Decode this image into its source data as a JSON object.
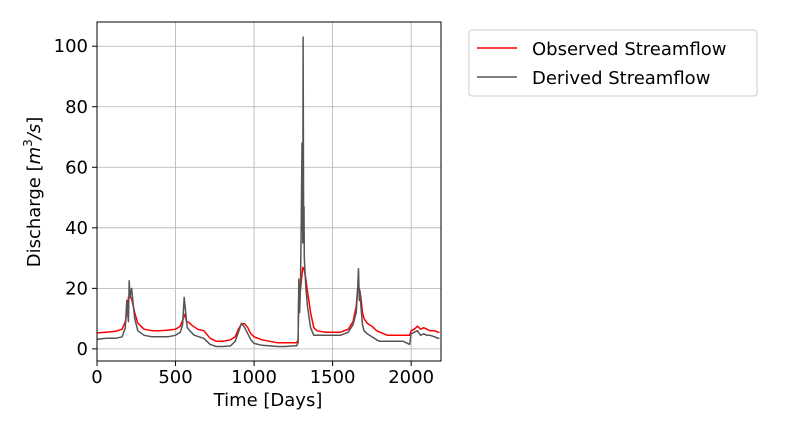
{
  "chart_data": {
    "type": "line",
    "xlabel": "Time [Days]",
    "ylabel_text": "Discharge [",
    "ylabel_unit_base": "m",
    "ylabel_unit_exp": "3",
    "ylabel_unit_tail": "/s",
    "ylabel_close": "]",
    "xlim": [
      0,
      2190
    ],
    "ylim": [
      -4,
      108
    ],
    "xticks": [
      0,
      500,
      1000,
      1500,
      2000
    ],
    "yticks": [
      0,
      20,
      40,
      60,
      80,
      100
    ],
    "grid": true,
    "legend_position": "outside-right-top",
    "series": [
      {
        "name": "Observed Streamflow",
        "color": "#ff0000",
        "x": [
          0,
          60,
          120,
          160,
          180,
          190,
          200,
          210,
          220,
          240,
          260,
          300,
          350,
          400,
          450,
          500,
          530,
          545,
          560,
          570,
          585,
          600,
          640,
          680,
          720,
          760,
          800,
          850,
          880,
          900,
          920,
          940,
          960,
          980,
          1000,
          1050,
          1100,
          1150,
          1200,
          1250,
          1270,
          1280,
          1285,
          1290,
          1300,
          1310,
          1320,
          1330,
          1340,
          1360,
          1380,
          1400,
          1450,
          1500,
          1550,
          1600,
          1630,
          1650,
          1660,
          1670,
          1680,
          1690,
          1700,
          1720,
          1750,
          1780,
          1800,
          1850,
          1900,
          1950,
          1990,
          2000,
          2020,
          2040,
          2060,
          2080,
          2100,
          2120,
          2150,
          2170,
          2180
        ],
        "y": [
          5.3,
          5.5,
          5.8,
          6.5,
          9.0,
          12.0,
          17.0,
          17.5,
          16.5,
          12.0,
          8.5,
          6.5,
          6.0,
          6.0,
          6.2,
          6.5,
          7.5,
          9.5,
          11.5,
          9.0,
          8.8,
          8.0,
          6.5,
          6.0,
          3.5,
          2.5,
          2.5,
          3.0,
          4.0,
          6.5,
          8.3,
          8.3,
          7.0,
          5.0,
          4.0,
          3.0,
          2.5,
          2.0,
          2.0,
          2.0,
          2.0,
          3.0,
          18.0,
          17.0,
          22.0,
          27.0,
          26.0,
          23.0,
          19.0,
          12.0,
          7.0,
          6.0,
          5.5,
          5.5,
          5.5,
          6.5,
          9.0,
          14.0,
          20.0,
          20.0,
          17.0,
          12.0,
          10.0,
          8.5,
          7.5,
          6.0,
          5.5,
          4.5,
          4.5,
          4.5,
          4.5,
          6.0,
          6.5,
          7.5,
          6.5,
          7.0,
          6.5,
          6.0,
          6.0,
          5.5,
          5.5
        ]
      },
      {
        "name": "Derived Streamflow",
        "color": "#555555",
        "x": [
          0,
          60,
          120,
          160,
          180,
          190,
          200,
          205,
          210,
          220,
          240,
          260,
          300,
          350,
          400,
          450,
          500,
          530,
          545,
          555,
          565,
          575,
          590,
          620,
          680,
          720,
          760,
          800,
          850,
          880,
          900,
          920,
          940,
          960,
          980,
          1000,
          1050,
          1100,
          1150,
          1200,
          1250,
          1270,
          1280,
          1285,
          1290,
          1295,
          1300,
          1305,
          1310,
          1312,
          1315,
          1318,
          1320,
          1325,
          1330,
          1340,
          1360,
          1380,
          1400,
          1450,
          1500,
          1550,
          1600,
          1630,
          1650,
          1660,
          1665,
          1670,
          1675,
          1680,
          1690,
          1700,
          1720,
          1750,
          1780,
          1800,
          1850,
          1900,
          1950,
          1990,
          2000,
          2020,
          2040,
          2060,
          2080,
          2100,
          2120,
          2150,
          2170,
          2180
        ],
        "y": [
          3.2,
          3.5,
          3.5,
          4.0,
          7.0,
          16.0,
          9.0,
          22.5,
          17.0,
          20.0,
          10.0,
          6.0,
          4.5,
          4.0,
          4.0,
          4.0,
          4.5,
          5.5,
          8.0,
          17.0,
          12.0,
          7.0,
          6.0,
          4.5,
          3.5,
          1.5,
          0.8,
          0.8,
          1.0,
          2.5,
          5.5,
          8.5,
          7.0,
          5.0,
          3.0,
          1.8,
          1.2,
          1.0,
          0.8,
          0.8,
          1.0,
          1.0,
          2.0,
          23.0,
          12.0,
          20.0,
          40.0,
          68.0,
          35.0,
          103.0,
          45.0,
          47.0,
          30.0,
          25.0,
          20.0,
          14.0,
          7.0,
          4.5,
          4.5,
          4.5,
          4.5,
          4.5,
          5.5,
          8.0,
          12.0,
          20.0,
          26.5,
          16.0,
          19.0,
          14.0,
          8.0,
          6.0,
          5.0,
          4.0,
          3.0,
          2.5,
          2.5,
          2.5,
          2.5,
          1.5,
          5.0,
          5.5,
          6.0,
          4.5,
          5.0,
          4.5,
          4.5,
          4.0,
          3.5,
          3.5
        ]
      }
    ]
  }
}
